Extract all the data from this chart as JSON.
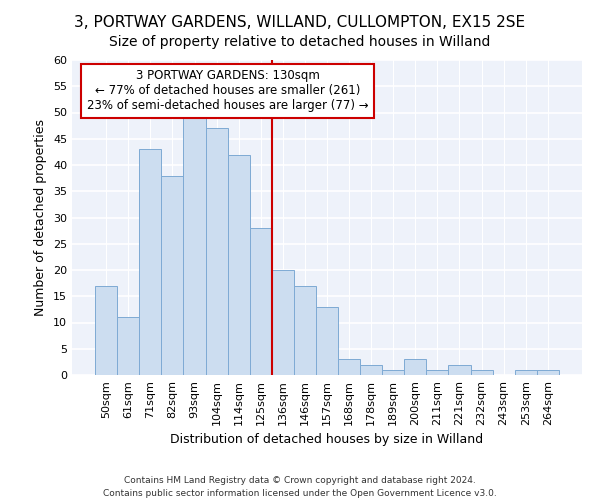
{
  "title": "3, PORTWAY GARDENS, WILLAND, CULLOMPTON, EX15 2SE",
  "subtitle": "Size of property relative to detached houses in Willand",
  "xlabel": "Distribution of detached houses by size in Willand",
  "ylabel": "Number of detached properties",
  "categories": [
    "50sqm",
    "61sqm",
    "71sqm",
    "82sqm",
    "93sqm",
    "104sqm",
    "114sqm",
    "125sqm",
    "136sqm",
    "146sqm",
    "157sqm",
    "168sqm",
    "178sqm",
    "189sqm",
    "200sqm",
    "211sqm",
    "221sqm",
    "232sqm",
    "243sqm",
    "253sqm",
    "264sqm"
  ],
  "values": [
    17,
    11,
    43,
    38,
    50,
    47,
    42,
    28,
    20,
    17,
    13,
    3,
    2,
    1,
    3,
    1,
    2,
    1,
    0,
    1,
    1
  ],
  "bar_color": "#ccddf0",
  "bar_edge_color": "#7eaad4",
  "vline_color": "#cc0000",
  "annotation_text": "3 PORTWAY GARDENS: 130sqm\n← 77% of detached houses are smaller (261)\n23% of semi-detached houses are larger (77) →",
  "annotation_box_color": "#ffffff",
  "annotation_box_edge_color": "#cc0000",
  "ylim": [
    0,
    60
  ],
  "yticks": [
    0,
    5,
    10,
    15,
    20,
    25,
    30,
    35,
    40,
    45,
    50,
    55,
    60
  ],
  "background_color": "#eef2fa",
  "grid_color": "#ffffff",
  "footer1": "Contains HM Land Registry data © Crown copyright and database right 2024.",
  "footer2": "Contains public sector information licensed under the Open Government Licence v3.0.",
  "title_fontsize": 11,
  "subtitle_fontsize": 10,
  "axis_label_fontsize": 9,
  "tick_fontsize": 8,
  "annotation_fontsize": 8.5,
  "footer_fontsize": 6.5
}
